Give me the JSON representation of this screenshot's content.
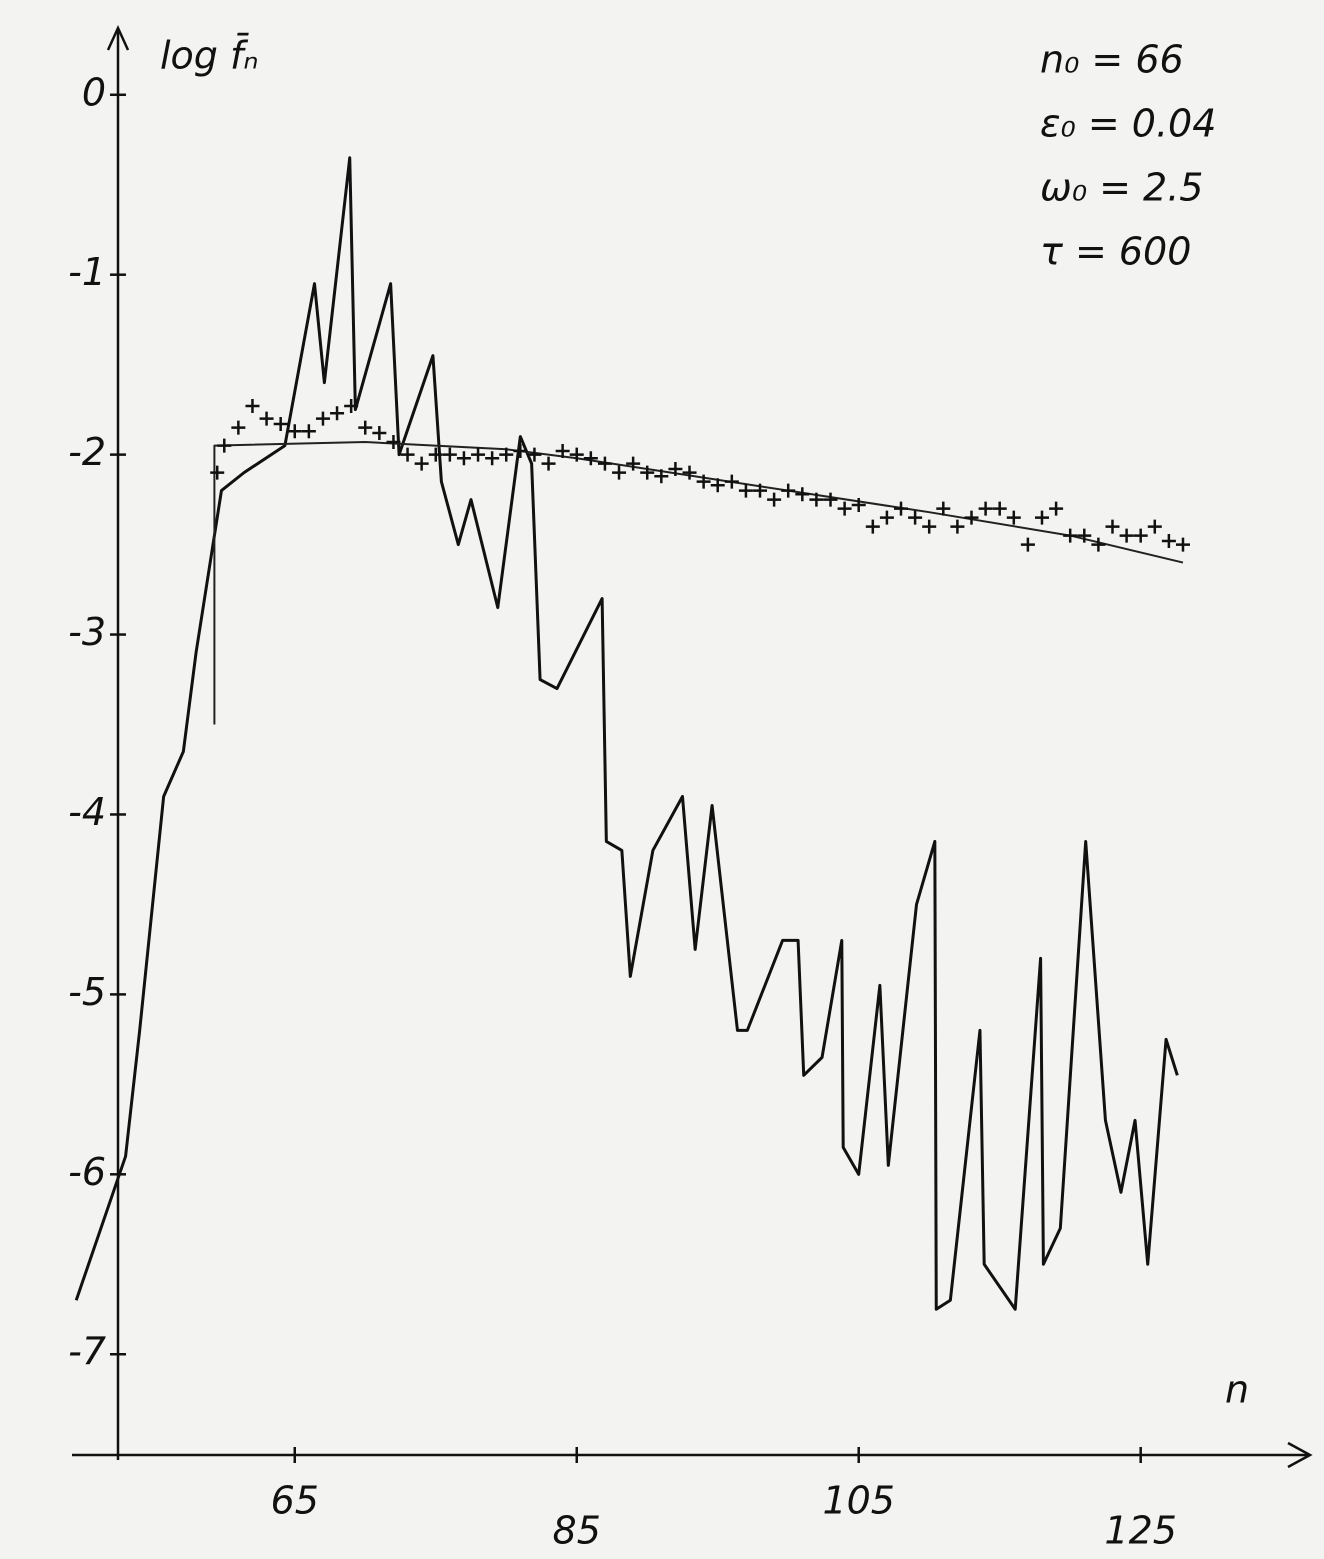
{
  "chart_data": {
    "type": "line",
    "y_label": "log f̄ₙ",
    "x_label": "n",
    "annotations": [
      "n₀ = 66",
      "ε₀ = 0.04",
      "ω₀ = 2.5",
      "τ = 600"
    ],
    "xlim": [
      49.2,
      136.3
    ],
    "ylim": [
      -7.56,
      0.36
    ],
    "xticks": [
      65,
      85,
      105,
      125
    ],
    "yticks": [
      0,
      -1,
      -2,
      -3,
      -4,
      -5,
      -6,
      -7
    ],
    "grid": false,
    "series": [
      {
        "color": "#111111",
        "marker": "none",
        "line_width": 3,
        "x": [
          49.5,
          53,
          54,
          55.7,
          57.1,
          58,
          59,
          59.8,
          61.4,
          64.3,
          66.4,
          67.1,
          68.9,
          69.3,
          71.8,
          72.4,
          74.8,
          75.4,
          76.6,
          77.5,
          79.4,
          81,
          81.8,
          82.4,
          83.6,
          86.8,
          87.1,
          88.2,
          88.8,
          90.4,
          92.5,
          93.4,
          94.6,
          96.4,
          97.1,
          99.6,
          100.7,
          101.1,
          102.4,
          103.8,
          103.9,
          105,
          106.5,
          107.1,
          109.1,
          110.4,
          110.5,
          111.5,
          113.6,
          113.9,
          116.1,
          117.9,
          118.1,
          119.3,
          121.1,
          122.5,
          123.6,
          124.6,
          125.5,
          126.8,
          127.6
        ],
        "values": [
          -6.7,
          -5.9,
          -5.2,
          -3.9,
          -3.65,
          -3.1,
          -2.6,
          -2.2,
          -2.1,
          -1.95,
          -1.05,
          -1.6,
          -0.35,
          -1.75,
          -1.05,
          -2.0,
          -1.45,
          -2.15,
          -2.5,
          -2.25,
          -2.85,
          -1.9,
          -2.05,
          -3.25,
          -3.3,
          -2.8,
          -4.15,
          -4.2,
          -4.9,
          -4.2,
          -3.9,
          -4.75,
          -3.95,
          -5.2,
          -5.2,
          -4.7,
          -4.7,
          -5.45,
          -5.35,
          -4.7,
          -5.85,
          -6.0,
          -4.95,
          -5.95,
          -4.5,
          -4.15,
          -6.75,
          -6.7,
          -5.2,
          -6.5,
          -6.75,
          -4.8,
          -6.5,
          -6.3,
          -4.15,
          -5.7,
          -6.1,
          -5.7,
          -6.5,
          -5.25,
          -5.45
        ]
      },
      {
        "color": "#222222",
        "marker": "none",
        "line_width": 2,
        "x": [
          59.3,
          59.3,
          70,
          80,
          85,
          90,
          100,
          110,
          120,
          128
        ],
        "values": [
          -3.5,
          -1.95,
          -1.93,
          -1.97,
          -2.02,
          -2.08,
          -2.2,
          -2.32,
          -2.45,
          -2.6
        ]
      },
      {
        "color": "#111111",
        "marker": "plus",
        "line_width": 0,
        "x": [
          59.5,
          60,
          61,
          62,
          63,
          64,
          65,
          66,
          67,
          68,
          69,
          70,
          71,
          72,
          73,
          74,
          75,
          76,
          77,
          78,
          79,
          80,
          81,
          82,
          83,
          84,
          85,
          86,
          87,
          88,
          89,
          90,
          91,
          92,
          93,
          94,
          95,
          96,
          97,
          98,
          99,
          100,
          101,
          102,
          103,
          104,
          105,
          106,
          107,
          108,
          109,
          110,
          111,
          112,
          113,
          114,
          115,
          116,
          117,
          118,
          119,
          120,
          121,
          122,
          123,
          124,
          125,
          126,
          127,
          128
        ],
        "values": [
          -2.1,
          -1.95,
          -1.85,
          -1.73,
          -1.8,
          -1.83,
          -1.87,
          -1.87,
          -1.8,
          -1.77,
          -1.73,
          -1.85,
          -1.88,
          -1.93,
          -2.0,
          -2.05,
          -2.0,
          -2.0,
          -2.02,
          -2.0,
          -2.02,
          -2.0,
          -1.98,
          -2.0,
          -2.05,
          -1.98,
          -2.0,
          -2.02,
          -2.05,
          -2.1,
          -2.05,
          -2.1,
          -2.12,
          -2.08,
          -2.1,
          -2.15,
          -2.17,
          -2.15,
          -2.2,
          -2.2,
          -2.25,
          -2.2,
          -2.22,
          -2.25,
          -2.25,
          -2.3,
          -2.28,
          -2.4,
          -2.35,
          -2.3,
          -2.35,
          -2.4,
          -2.3,
          -2.4,
          -2.35,
          -2.3,
          -2.3,
          -2.35,
          -2.5,
          -2.35,
          -2.3,
          -2.45,
          -2.45,
          -2.5,
          -2.4,
          -2.45,
          -2.45,
          -2.4,
          -2.48,
          -2.5
        ]
      }
    ]
  }
}
